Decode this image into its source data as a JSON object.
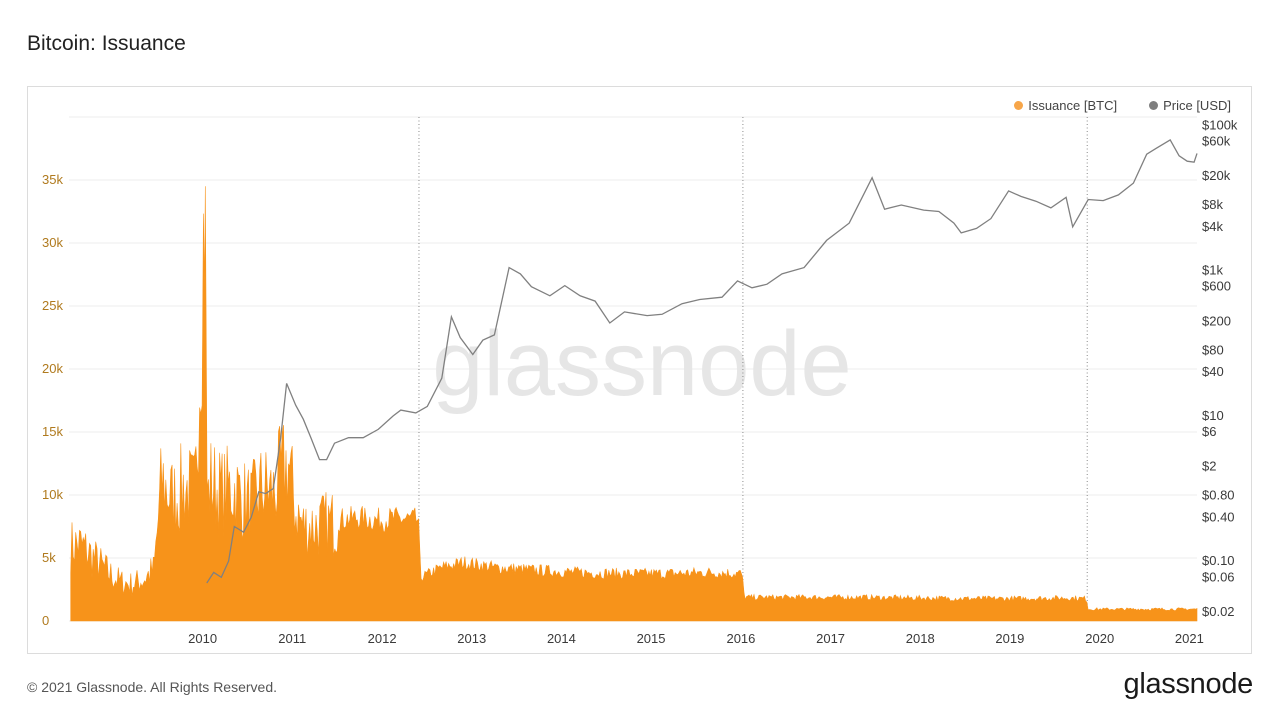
{
  "page": {
    "title": "Bitcoin: Issuance",
    "copyright": "© 2021 Glassnode. All Rights Reserved.",
    "logo_text": "glassnode",
    "watermark": "glassnode"
  },
  "colors": {
    "issuance": "#f7931a",
    "price": "#808080",
    "left_axis_text": "#b07a1e",
    "grid": "#ececec"
  },
  "chart_data": {
    "type": "area",
    "grid": true,
    "legend_position": "top-right",
    "x_ticks": [
      "2010",
      "2011",
      "2012",
      "2013",
      "2014",
      "2015",
      "2016",
      "2017",
      "2018",
      "2019",
      "2020",
      "2021"
    ],
    "x_range": [
      "2009-01-03",
      "2021-08-01"
    ],
    "halving_dates": [
      "2012-11-28",
      "2016-07-09",
      "2020-05-11"
    ],
    "left_axis": {
      "ticks": [
        "0",
        "5k",
        "10k",
        "15k",
        "20k",
        "25k",
        "30k",
        "35k"
      ],
      "ylim": [
        0,
        40000
      ]
    },
    "right_axis": {
      "scale": "log",
      "ticks": [
        "$0.02",
        "$0.06",
        "$0.10",
        "$0.40",
        "$0.80",
        "$2",
        "$6",
        "$10",
        "$40",
        "$80",
        "$200",
        "$600",
        "$1k",
        "$4k",
        "$8k",
        "$20k",
        "$60k",
        "$100k"
      ],
      "ylim": [
        0.015,
        130000
      ]
    },
    "series": [
      {
        "name": "Issuance [BTC]",
        "axis": "left",
        "x": [
          "2009-01-10",
          "2009-02-15",
          "2009-03-15",
          "2009-05-01",
          "2009-06-15",
          "2009-08-01",
          "2009-09-15",
          "2009-11-01",
          "2009-12-15",
          "2010-01-15",
          "2010-03-01",
          "2010-04-15",
          "2010-06-01",
          "2010-07-10",
          "2010-07-20",
          "2010-08-01",
          "2010-09-15",
          "2010-11-01",
          "2010-12-15",
          "2011-01-15",
          "2011-03-01",
          "2011-04-15",
          "2011-05-15",
          "2011-06-15",
          "2011-07-15",
          "2011-08-15",
          "2011-10-01",
          "2011-12-01",
          "2012-02-01",
          "2012-04-01",
          "2012-06-01",
          "2012-08-01",
          "2012-10-01",
          "2012-11-25",
          "2012-12-05",
          "2013-03-01",
          "2013-06-01",
          "2013-10-01",
          "2014-03-01",
          "2014-09-01",
          "2015-03-01",
          "2015-09-01",
          "2016-03-01",
          "2016-07-05",
          "2016-07-15",
          "2017-03-01",
          "2017-11-01",
          "2018-06-01",
          "2019-01-01",
          "2019-08-01",
          "2020-03-01",
          "2020-05-08",
          "2020-05-15",
          "2021-01-01",
          "2021-08-01"
        ],
        "values": [
          6200,
          6300,
          5800,
          4800,
          3900,
          3200,
          3000,
          3400,
          4200,
          11500,
          10000,
          11000,
          10500,
          34500,
          9500,
          11500,
          10500,
          11000,
          10000,
          9500,
          11000,
          10500,
          12000,
          13000,
          9000,
          7800,
          7800,
          8000,
          8200,
          8300,
          8100,
          8200,
          8200,
          8100,
          3500,
          4300,
          4700,
          4300,
          4100,
          3900,
          3800,
          3800,
          3900,
          3800,
          1900,
          1900,
          1900,
          1850,
          1800,
          1800,
          1850,
          1800,
          950,
          950,
          950
        ]
      },
      {
        "name": "Price [USD]",
        "axis": "right",
        "x": [
          "2010-07-18",
          "2010-08-15",
          "2010-09-15",
          "2010-10-15",
          "2010-11-07",
          "2010-12-15",
          "2011-01-15",
          "2011-02-15",
          "2011-03-15",
          "2011-04-15",
          "2011-05-15",
          "2011-06-08",
          "2011-07-15",
          "2011-08-15",
          "2011-09-15",
          "2011-10-20",
          "2011-11-18",
          "2011-12-20",
          "2012-02-15",
          "2012-04-15",
          "2012-06-15",
          "2012-08-15",
          "2012-09-15",
          "2012-11-15",
          "2013-01-01",
          "2013-03-01",
          "2013-04-09",
          "2013-05-15",
          "2013-07-05",
          "2013-08-15",
          "2013-10-01",
          "2013-11-30",
          "2014-01-15",
          "2014-03-01",
          "2014-05-15",
          "2014-07-15",
          "2014-09-15",
          "2014-11-15",
          "2015-01-14",
          "2015-03-15",
          "2015-06-15",
          "2015-08-15",
          "2015-11-04",
          "2016-01-15",
          "2016-04-15",
          "2016-06-17",
          "2016-08-15",
          "2016-10-15",
          "2016-12-15",
          "2017-03-15",
          "2017-06-15",
          "2017-09-15",
          "2017-12-17",
          "2018-02-06",
          "2018-04-15",
          "2018-07-15",
          "2018-09-15",
          "2018-11-15",
          "2018-12-15",
          "2019-02-15",
          "2019-04-15",
          "2019-06-26",
          "2019-08-15",
          "2019-10-15",
          "2019-12-15",
          "2020-02-15",
          "2020-03-13",
          "2020-05-15",
          "2020-07-15",
          "2020-09-15",
          "2020-11-15",
          "2021-01-08",
          "2021-02-15",
          "2021-04-14",
          "2021-05-20",
          "2021-06-22",
          "2021-07-20",
          "2021-08-01"
        ],
        "values": [
          0.05,
          0.07,
          0.06,
          0.1,
          0.3,
          0.25,
          0.4,
          0.9,
          0.85,
          1.0,
          5,
          28,
          14,
          9,
          5,
          2.5,
          2.5,
          4.2,
          5,
          5,
          6.5,
          10,
          12,
          11,
          13.5,
          33,
          230,
          120,
          70,
          110,
          130,
          1100,
          900,
          600,
          450,
          620,
          450,
          380,
          190,
          270,
          240,
          250,
          350,
          400,
          430,
          720,
          580,
          650,
          900,
          1100,
          2600,
          4500,
          19000,
          7000,
          8000,
          6800,
          6500,
          4500,
          3300,
          3800,
          5200,
          12500,
          10500,
          9000,
          7300,
          10200,
          4000,
          9500,
          9200,
          11000,
          16000,
          40000,
          48000,
          63000,
          38000,
          32000,
          31000,
          41000
        ]
      }
    ]
  }
}
